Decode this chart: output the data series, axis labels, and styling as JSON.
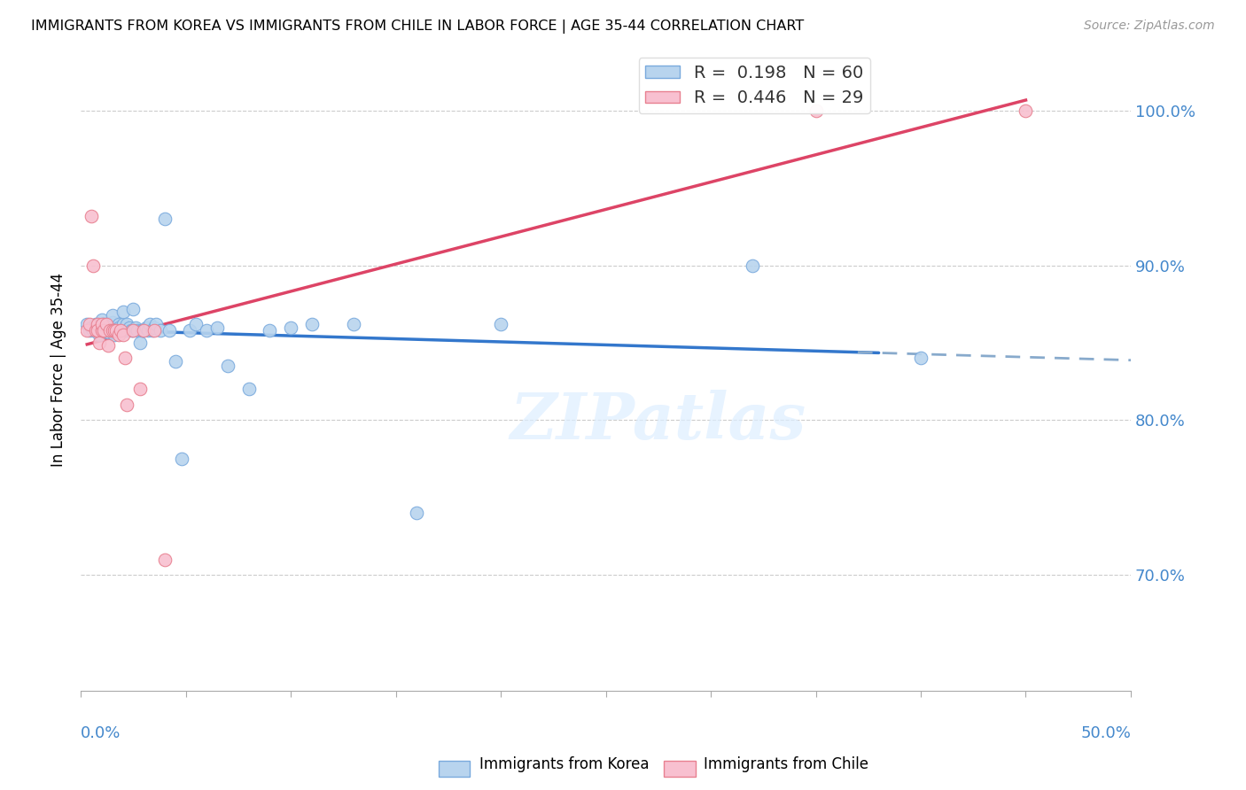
{
  "title": "IMMIGRANTS FROM KOREA VS IMMIGRANTS FROM CHILE IN LABOR FORCE | AGE 35-44 CORRELATION CHART",
  "source": "Source: ZipAtlas.com",
  "ylabel": "In Labor Force | Age 35-44",
  "ytick_labels": [
    "70.0%",
    "80.0%",
    "90.0%",
    "100.0%"
  ],
  "ytick_values": [
    0.7,
    0.8,
    0.9,
    1.0
  ],
  "xlim": [
    0.0,
    0.5
  ],
  "ylim": [
    0.625,
    1.04
  ],
  "korea_color": "#b8d4ee",
  "korea_edge_color": "#7aaadd",
  "chile_color": "#f8c0d0",
  "chile_edge_color": "#e88090",
  "korea_R": "0.198",
  "korea_N": "60",
  "chile_R": "0.446",
  "chile_N": "29",
  "trend_korea_solid_color": "#3377cc",
  "trend_korea_dash_color": "#88aacc",
  "trend_chile_color": "#dd4466",
  "watermark_color": "#ddeeff",
  "korea_scatter_x": [
    0.003,
    0.004,
    0.005,
    0.006,
    0.007,
    0.008,
    0.008,
    0.009,
    0.01,
    0.01,
    0.011,
    0.012,
    0.013,
    0.014,
    0.015,
    0.015,
    0.016,
    0.017,
    0.018,
    0.018,
    0.019,
    0.02,
    0.02,
    0.021,
    0.022,
    0.022,
    0.023,
    0.024,
    0.025,
    0.025,
    0.026,
    0.027,
    0.028,
    0.029,
    0.03,
    0.031,
    0.032,
    0.033,
    0.034,
    0.035,
    0.036,
    0.038,
    0.04,
    0.042,
    0.045,
    0.048,
    0.052,
    0.055,
    0.06,
    0.065,
    0.07,
    0.08,
    0.09,
    0.1,
    0.11,
    0.13,
    0.16,
    0.2,
    0.32,
    0.4
  ],
  "korea_scatter_y": [
    0.862,
    0.858,
    0.86,
    0.858,
    0.862,
    0.858,
    0.86,
    0.855,
    0.858,
    0.865,
    0.862,
    0.86,
    0.857,
    0.858,
    0.863,
    0.868,
    0.855,
    0.858,
    0.862,
    0.86,
    0.858,
    0.862,
    0.87,
    0.858,
    0.862,
    0.858,
    0.86,
    0.858,
    0.872,
    0.858,
    0.86,
    0.858,
    0.85,
    0.858,
    0.858,
    0.86,
    0.858,
    0.862,
    0.858,
    0.86,
    0.862,
    0.858,
    0.93,
    0.858,
    0.838,
    0.775,
    0.858,
    0.862,
    0.858,
    0.86,
    0.835,
    0.82,
    0.858,
    0.86,
    0.862,
    0.862,
    0.74,
    0.862,
    0.9,
    0.84
  ],
  "chile_scatter_x": [
    0.003,
    0.004,
    0.005,
    0.006,
    0.007,
    0.008,
    0.008,
    0.009,
    0.01,
    0.01,
    0.011,
    0.012,
    0.013,
    0.014,
    0.015,
    0.016,
    0.017,
    0.018,
    0.019,
    0.02,
    0.021,
    0.022,
    0.025,
    0.028,
    0.03,
    0.035,
    0.04,
    0.35,
    0.45
  ],
  "chile_scatter_y": [
    0.858,
    0.862,
    0.932,
    0.9,
    0.858,
    0.862,
    0.858,
    0.85,
    0.858,
    0.862,
    0.858,
    0.862,
    0.848,
    0.858,
    0.858,
    0.858,
    0.858,
    0.855,
    0.858,
    0.855,
    0.84,
    0.81,
    0.858,
    0.82,
    0.858,
    0.858,
    0.71,
    1.0,
    1.0
  ],
  "xtick_vals": [
    0.0,
    0.05,
    0.1,
    0.15,
    0.2,
    0.25,
    0.3,
    0.35,
    0.4,
    0.45,
    0.5
  ]
}
